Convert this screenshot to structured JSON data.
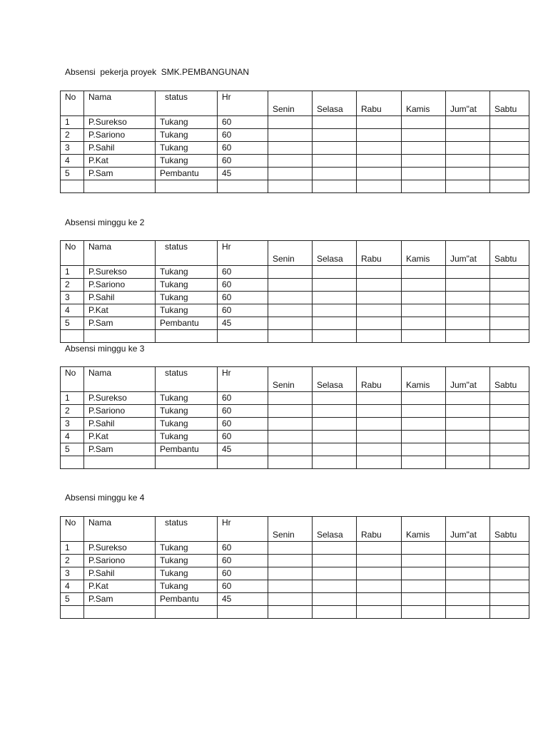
{
  "columns": {
    "no": "No",
    "nama": "Nama",
    "status": "status",
    "hr": "Hr",
    "days": [
      "Senin",
      "Selasa",
      "Rabu",
      "Kamis",
      "Jum\"at",
      "Sabtu"
    ]
  },
  "workers": [
    {
      "no": "1",
      "nama": "P.Surekso",
      "status": "Tukang",
      "hr": "60"
    },
    {
      "no": "2",
      "nama": "P.Sariono",
      "status": "Tukang",
      "hr": "60"
    },
    {
      "no": "3",
      "nama": "P.Sahil",
      "status": "Tukang",
      "hr": "60"
    },
    {
      "no": "4",
      "nama": "P.Kat",
      "status": "Tukang",
      "hr": "60"
    },
    {
      "no": "5",
      "nama": "P.Sam",
      "status": "Pembantu",
      "hr": "45"
    }
  ],
  "sections": [
    {
      "title": "Absensi  pekerja proyek  SMK.PEMBANGUNAN"
    },
    {
      "title": "Absensi minggu ke 2"
    },
    {
      "title": "Absensi minggu ke 3"
    },
    {
      "title": "Absensi minggu ke 4"
    }
  ]
}
